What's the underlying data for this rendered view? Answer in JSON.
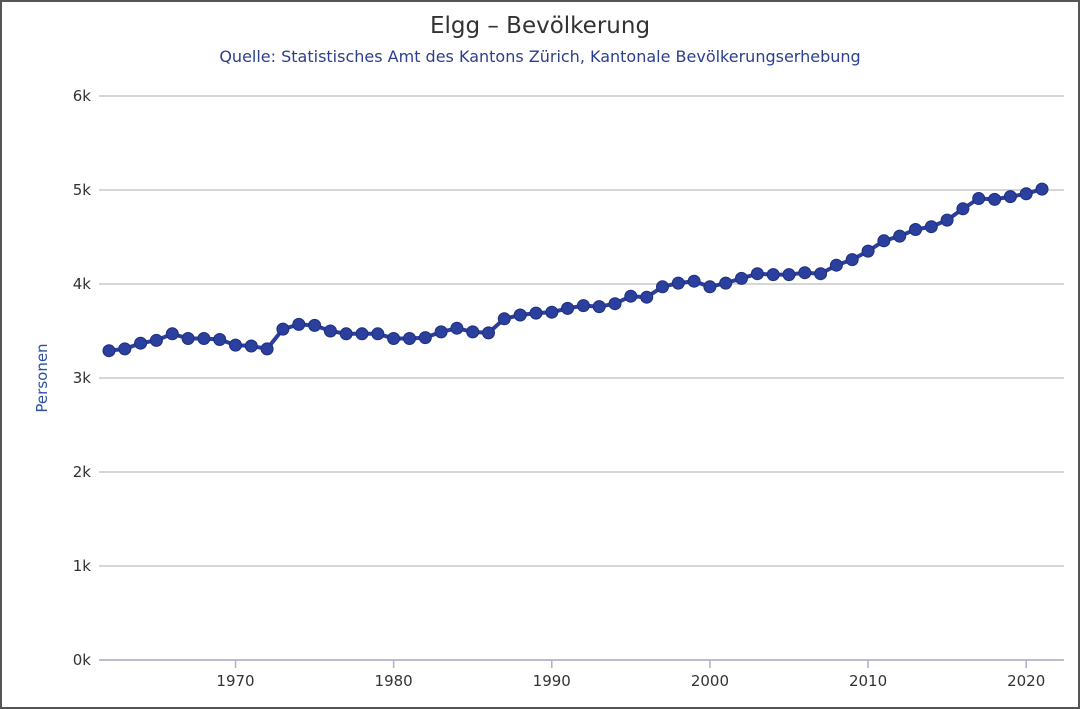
{
  "chart_data": {
    "type": "line",
    "title": "Elgg – Bevölkerung",
    "subtitle": "Quelle: Statistisches Amt des Kantons Zürich, Kantonale Bevölkerungserhebung",
    "xlabel": "",
    "ylabel": "Personen",
    "xlim": [
      1962,
      2021
    ],
    "ylim": [
      0,
      6000
    ],
    "x_ticks": [
      1970,
      1980,
      1990,
      2000,
      2010,
      2020
    ],
    "y_ticks": [
      0,
      1000,
      2000,
      3000,
      4000,
      5000,
      6000
    ],
    "y_tick_labels": [
      "0k",
      "1k",
      "2k",
      "3k",
      "4k",
      "5k",
      "6k"
    ],
    "grid": "horizontal",
    "line_color": "#2b3f9e",
    "marker_color": "#2b3f9e",
    "series": [
      {
        "x": [
          1962,
          1963,
          1964,
          1965,
          1966,
          1967,
          1968,
          1969,
          1970,
          1971,
          1972,
          1973,
          1974,
          1975,
          1976,
          1977,
          1978,
          1979,
          1980,
          1981,
          1982,
          1983,
          1984,
          1985,
          1986,
          1987,
          1988,
          1989,
          1990,
          1991,
          1992,
          1993,
          1994,
          1995,
          1996,
          1997,
          1998,
          1999,
          2000,
          2001,
          2002,
          2003,
          2004,
          2005,
          2006,
          2007,
          2008,
          2009,
          2010,
          2011,
          2012,
          2013,
          2014,
          2015,
          2016,
          2017,
          2018,
          2019,
          2020,
          2021
        ],
        "values": [
          3290,
          3310,
          3370,
          3400,
          3470,
          3420,
          3420,
          3410,
          3350,
          3340,
          3310,
          3520,
          3570,
          3560,
          3500,
          3470,
          3470,
          3470,
          3420,
          3420,
          3430,
          3490,
          3530,
          3490,
          3480,
          3630,
          3670,
          3690,
          3700,
          3740,
          3770,
          3760,
          3790,
          3870,
          3860,
          3970,
          4010,
          4030,
          3970,
          4010,
          4060,
          4110,
          4100,
          4100,
          4120,
          4110,
          4200,
          4260,
          4350,
          4460,
          4510,
          4580,
          4610,
          4680,
          4800,
          4910,
          4900,
          4930,
          4960,
          5010
        ]
      }
    ]
  }
}
